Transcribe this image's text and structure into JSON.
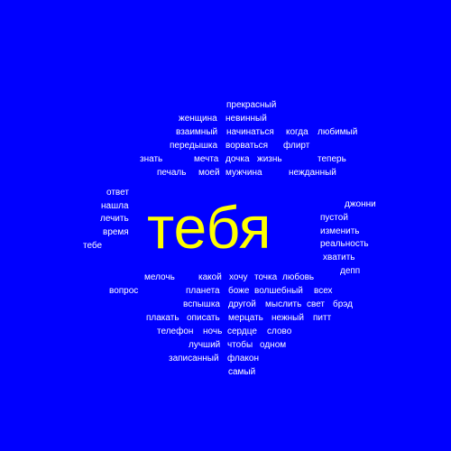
{
  "colors": {
    "background": "#0000FF",
    "primary_word": "#FFFF00",
    "secondary_words": "#FFFFFF"
  },
  "main_word": "тебя",
  "words": [
    "прекрасный",
    "женщина",
    "невинный",
    "взаимный",
    "начинаться",
    "когда",
    "любимый",
    "передышка",
    "ворваться",
    "флирт",
    "знать",
    "мечта",
    "дочка",
    "жизнь",
    "теперь",
    "печаль",
    "моей",
    "мужчина",
    "нежданный",
    "ответ",
    "нашла",
    "лечить",
    "время",
    "тебе",
    "джонни",
    "пустой",
    "изменить",
    "реальность",
    "хватить",
    "депп",
    "мелочь",
    "какой",
    "хочу",
    "точка",
    "любовь",
    "вопрос",
    "планета",
    "боже",
    "волшебный",
    "всех",
    "вспышка",
    "другой",
    "мыслить",
    "свет",
    "брэд",
    "плакать",
    "описать",
    "мерцать",
    "нежный",
    "питт",
    "телефон",
    "ночь",
    "сердце",
    "слово",
    "лучший",
    "чтобы",
    "одном",
    "записанный",
    "флакон",
    "самый"
  ]
}
